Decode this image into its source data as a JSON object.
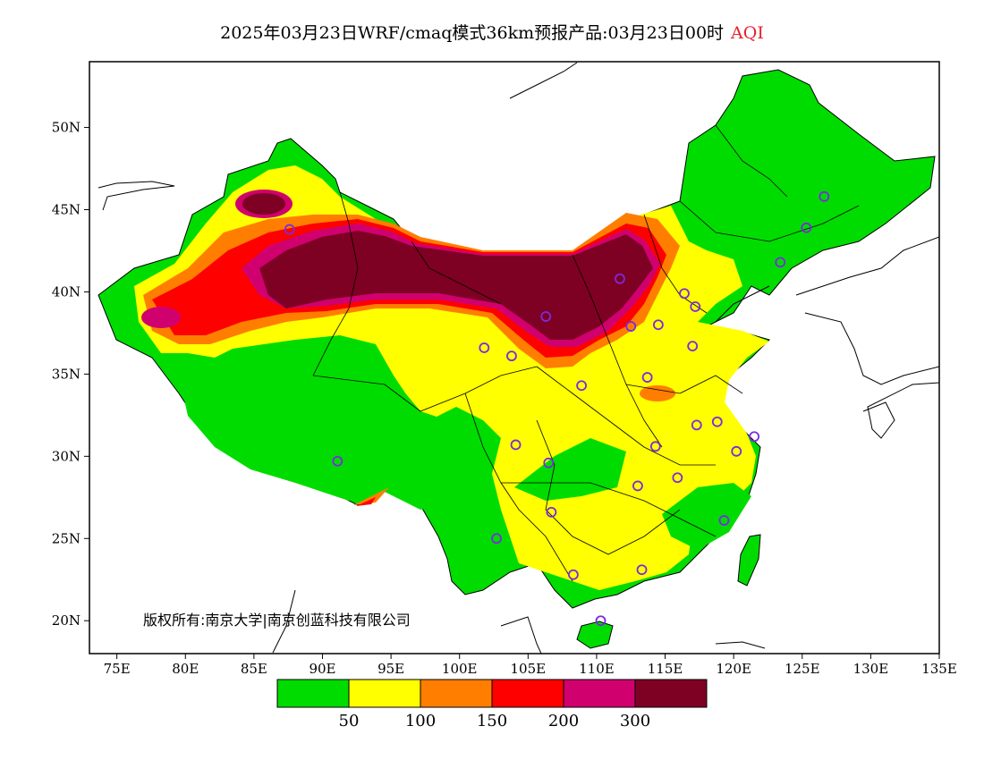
{
  "title": {
    "main": "2025年03月23日WRF/cmaq模式36km预报产品:03月23日00时",
    "highlight": "AQI"
  },
  "copyright": "版权所有:南京大学|南京创蓝科技有限公司",
  "axes": {
    "lat_ticks": [
      "50N",
      "45N",
      "40N",
      "35N",
      "30N",
      "25N",
      "20N"
    ],
    "lon_ticks": [
      "75E",
      "80E",
      "85E",
      "90E",
      "95E",
      "100E",
      "105E",
      "110E",
      "115E",
      "120E",
      "125E",
      "130E",
      "135E"
    ],
    "lon_range": [
      73,
      135
    ],
    "lat_range": [
      18,
      54
    ]
  },
  "legend": {
    "colors": [
      "#00dc00",
      "#ffff00",
      "#ff7e00",
      "#ff0000",
      "#d0006f",
      "#7e0023"
    ],
    "labels": [
      "50",
      "100",
      "150",
      "200",
      "300"
    ]
  },
  "station_color": "#7b2ae0",
  "stations": [
    {
      "lon": 87.6,
      "lat": 43.8
    },
    {
      "lon": 91.1,
      "lat": 29.7
    },
    {
      "lon": 101.8,
      "lat": 36.6
    },
    {
      "lon": 103.8,
      "lat": 36.1
    },
    {
      "lon": 106.3,
      "lat": 38.5
    },
    {
      "lon": 111.7,
      "lat": 40.8
    },
    {
      "lon": 112.5,
      "lat": 37.9
    },
    {
      "lon": 114.5,
      "lat": 38.0
    },
    {
      "lon": 116.4,
      "lat": 39.9
    },
    {
      "lon": 117.2,
      "lat": 39.1
    },
    {
      "lon": 117.0,
      "lat": 36.7
    },
    {
      "lon": 113.7,
      "lat": 34.8
    },
    {
      "lon": 108.9,
      "lat": 34.3
    },
    {
      "lon": 104.1,
      "lat": 30.7
    },
    {
      "lon": 106.5,
      "lat": 29.6
    },
    {
      "lon": 114.3,
      "lat": 30.6
    },
    {
      "lon": 117.3,
      "lat": 31.9
    },
    {
      "lon": 118.8,
      "lat": 32.1
    },
    {
      "lon": 121.5,
      "lat": 31.2
    },
    {
      "lon": 120.2,
      "lat": 30.3
    },
    {
      "lon": 115.9,
      "lat": 28.7
    },
    {
      "lon": 113.0,
      "lat": 28.2
    },
    {
      "lon": 119.3,
      "lat": 26.1
    },
    {
      "lon": 106.7,
      "lat": 26.6
    },
    {
      "lon": 102.7,
      "lat": 25.0
    },
    {
      "lon": 108.3,
      "lat": 22.8
    },
    {
      "lon": 113.3,
      "lat": 23.1
    },
    {
      "lon": 110.3,
      "lat": 20.0
    },
    {
      "lon": 123.4,
      "lat": 41.8
    },
    {
      "lon": 125.3,
      "lat": 43.9
    },
    {
      "lon": 126.6,
      "lat": 45.8
    }
  ]
}
